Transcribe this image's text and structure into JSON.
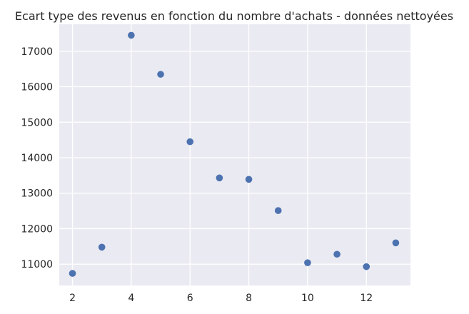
{
  "chart_data": {
    "type": "scatter",
    "title": "Ecart type des revenus en fonction du nombre d'achats - données nettoyées",
    "xlabel": "",
    "ylabel": "",
    "x": [
      2,
      3,
      4,
      5,
      6,
      7,
      8,
      9,
      10,
      11,
      12,
      13
    ],
    "y": [
      10740,
      11480,
      17450,
      16350,
      14450,
      13430,
      13390,
      12510,
      11040,
      11280,
      10930,
      11600
    ],
    "xlim": [
      1.55,
      13.5
    ],
    "ylim": [
      10400,
      17760
    ],
    "xticks": [
      "2",
      "4",
      "6",
      "8",
      "10",
      "12"
    ],
    "yticks": [
      "11000",
      "12000",
      "13000",
      "14000",
      "15000",
      "16000",
      "17000"
    ],
    "grid": true,
    "style": {
      "background": "#eaeaf2",
      "grid_color": "#ffffff",
      "marker_color": "#4c72b0"
    }
  }
}
